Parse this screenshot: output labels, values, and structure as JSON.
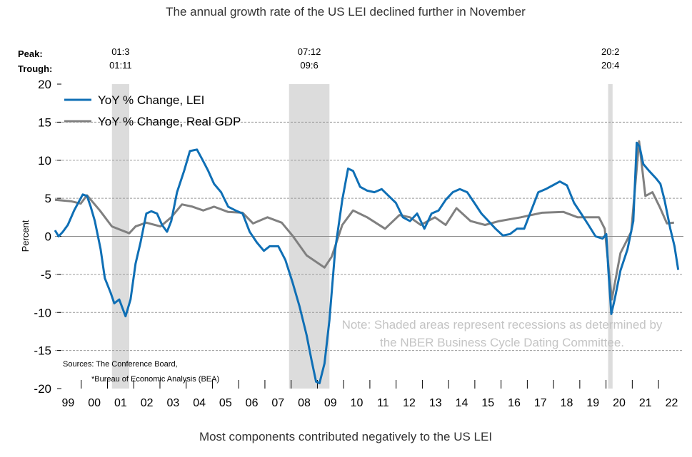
{
  "chart_data": {
    "type": "line",
    "title": "The annual growth rate of the US LEI declined further in November",
    "footer": "Most components contributed negatively to the US LEI",
    "ylabel": "Percent",
    "ylim": [
      -20,
      20
    ],
    "yticks": [
      20,
      15,
      10,
      5,
      0,
      -5,
      -10,
      -15,
      -20
    ],
    "xlim": [
      1999,
      2022.95
    ],
    "xtick_labels": [
      "99",
      "00",
      "01",
      "02",
      "03",
      "04",
      "05",
      "06",
      "07",
      "08",
      "09",
      "10",
      "11",
      "12",
      "13",
      "14",
      "15",
      "16",
      "17",
      "18",
      "19",
      "20",
      "21",
      "22"
    ],
    "grid": true,
    "legend_placement": "top-left",
    "peak_label": "Peak:",
    "trough_label": "Trough:",
    "recessions": [
      {
        "start": 2001.17,
        "end": 2001.83,
        "peak": "01:3",
        "trough": "01:11"
      },
      {
        "start": 2007.92,
        "end": 2009.46,
        "peak": "07:12",
        "trough": "09:6"
      },
      {
        "start": 2020.08,
        "end": 2020.25,
        "peak": "20:2",
        "trough": "20:4"
      }
    ],
    "note_lines": [
      "Note: Shaded areas represent recessions as determined by",
      "the NBER Business Cycle Dating Committee."
    ],
    "sources_lines": [
      "Sources: The Conference Board,",
      "*Bureau of Economic Analysis (BEA)"
    ],
    "series": [
      {
        "name": "YoY % Change, LEI",
        "color": "#0f6fb5",
        "points": [
          [
            1999.0,
            0.8
          ],
          [
            1999.14,
            0
          ],
          [
            1999.3,
            0.6
          ],
          [
            1999.49,
            1.5
          ],
          [
            1999.73,
            3.4
          ],
          [
            1999.98,
            5.0
          ],
          [
            2000.06,
            5.5
          ],
          [
            2000.22,
            5.3
          ],
          [
            2000.36,
            3.9
          ],
          [
            2000.52,
            2
          ],
          [
            2000.74,
            -1.7
          ],
          [
            2000.9,
            -5.5
          ],
          [
            2001.12,
            -7.4
          ],
          [
            2001.26,
            -8.8
          ],
          [
            2001.45,
            -8.3
          ],
          [
            2001.69,
            -10.5
          ],
          [
            2001.88,
            -8.3
          ],
          [
            2002.07,
            -3.6
          ],
          [
            2002.26,
            -0.8
          ],
          [
            2002.48,
            3
          ],
          [
            2002.67,
            3.3
          ],
          [
            2002.89,
            3
          ],
          [
            2003.08,
            1.5
          ],
          [
            2003.27,
            0.6
          ],
          [
            2003.43,
            2
          ],
          [
            2003.65,
            5.8
          ],
          [
            2003.92,
            8.6
          ],
          [
            2004.14,
            11.2
          ],
          [
            2004.41,
            11.4
          ],
          [
            2004.63,
            10
          ],
          [
            2004.84,
            8.6
          ],
          [
            2005.06,
            6.9
          ],
          [
            2005.33,
            5.8
          ],
          [
            2005.6,
            3.9
          ],
          [
            2005.88,
            3.4
          ],
          [
            2006.15,
            3
          ],
          [
            2006.42,
            0.6
          ],
          [
            2006.69,
            -0.8
          ],
          [
            2006.96,
            -1.9
          ],
          [
            2007.18,
            -1.3
          ],
          [
            2007.51,
            -1.3
          ],
          [
            2007.78,
            -3.1
          ],
          [
            2008.05,
            -6
          ],
          [
            2008.32,
            -9.2
          ],
          [
            2008.59,
            -13
          ],
          [
            2008.78,
            -16.3
          ],
          [
            2008.95,
            -19.1
          ],
          [
            2009.08,
            -19.3
          ],
          [
            2009.27,
            -16.7
          ],
          [
            2009.46,
            -11
          ],
          [
            2009.68,
            -1.7
          ],
          [
            2009.95,
            4.8
          ],
          [
            2010.17,
            8.9
          ],
          [
            2010.36,
            8.6
          ],
          [
            2010.63,
            6.5
          ],
          [
            2010.9,
            6
          ],
          [
            2011.17,
            5.8
          ],
          [
            2011.45,
            6.2
          ],
          [
            2011.72,
            5.3
          ],
          [
            2011.99,
            4.4
          ],
          [
            2012.26,
            2.5
          ],
          [
            2012.53,
            2
          ],
          [
            2012.8,
            3
          ],
          [
            2013.08,
            1
          ],
          [
            2013.35,
            3
          ],
          [
            2013.62,
            3.4
          ],
          [
            2013.89,
            4.8
          ],
          [
            2014.16,
            5.8
          ],
          [
            2014.43,
            6.2
          ],
          [
            2014.71,
            5.8
          ],
          [
            2014.98,
            4.4
          ],
          [
            2015.25,
            3
          ],
          [
            2015.52,
            2
          ],
          [
            2015.79,
            1
          ],
          [
            2016.07,
            0.1
          ],
          [
            2016.34,
            0.3
          ],
          [
            2016.61,
            1
          ],
          [
            2016.88,
            1
          ],
          [
            2017.15,
            3.4
          ],
          [
            2017.42,
            5.8
          ],
          [
            2017.7,
            6.2
          ],
          [
            2017.97,
            6.7
          ],
          [
            2018.24,
            7.2
          ],
          [
            2018.51,
            6.7
          ],
          [
            2018.78,
            4.4
          ],
          [
            2019.05,
            3
          ],
          [
            2019.33,
            1.5
          ],
          [
            2019.6,
            0
          ],
          [
            2019.87,
            -0.3
          ],
          [
            2020.01,
            0.3
          ],
          [
            2020.09,
            -4.5
          ],
          [
            2020.2,
            -10.2
          ],
          [
            2020.33,
            -8.3
          ],
          [
            2020.55,
            -4.5
          ],
          [
            2020.82,
            -1.7
          ],
          [
            2021.04,
            2
          ],
          [
            2021.17,
            12.3
          ],
          [
            2021.28,
            11.8
          ],
          [
            2021.42,
            9.5
          ],
          [
            2021.64,
            8.6
          ],
          [
            2021.91,
            7.6
          ],
          [
            2022.07,
            6.9
          ],
          [
            2022.23,
            4.8
          ],
          [
            2022.45,
            1
          ],
          [
            2022.61,
            -1.3
          ],
          [
            2022.75,
            -4.4
          ]
        ]
      },
      {
        "name": "YoY % Change, Real GDP",
        "color": "#808080",
        "points": [
          [
            1999.0,
            4.8
          ],
          [
            1999.63,
            4.6
          ],
          [
            1999.98,
            4.3
          ],
          [
            2000.22,
            5.4
          ],
          [
            2000.71,
            3.4
          ],
          [
            2001.17,
            1.3
          ],
          [
            2001.83,
            0.4
          ],
          [
            2002.07,
            1.3
          ],
          [
            2002.48,
            1.8
          ],
          [
            2003.02,
            1.3
          ],
          [
            2003.43,
            2.5
          ],
          [
            2003.84,
            4.2
          ],
          [
            2004.24,
            3.9
          ],
          [
            2004.65,
            3.4
          ],
          [
            2005.06,
            3.9
          ],
          [
            2005.6,
            3.2
          ],
          [
            2006.15,
            3.1
          ],
          [
            2006.55,
            1.7
          ],
          [
            2007.1,
            2.5
          ],
          [
            2007.64,
            1.8
          ],
          [
            2008.05,
            0.1
          ],
          [
            2008.59,
            -2.5
          ],
          [
            2009.27,
            -4.1
          ],
          [
            2009.54,
            -2.7
          ],
          [
            2009.95,
            1.5
          ],
          [
            2010.36,
            3.4
          ],
          [
            2010.9,
            2.5
          ],
          [
            2011.58,
            1
          ],
          [
            2012.13,
            2.8
          ],
          [
            2012.53,
            2.5
          ],
          [
            2012.94,
            1.5
          ],
          [
            2013.48,
            2.5
          ],
          [
            2013.89,
            1.5
          ],
          [
            2014.3,
            3.7
          ],
          [
            2014.84,
            2
          ],
          [
            2015.39,
            1.5
          ],
          [
            2015.93,
            2
          ],
          [
            2016.75,
            2.5
          ],
          [
            2017.56,
            3.1
          ],
          [
            2018.38,
            3.2
          ],
          [
            2018.92,
            2.5
          ],
          [
            2019.73,
            2.5
          ],
          [
            2019.95,
            1
          ],
          [
            2020.22,
            -8.3
          ],
          [
            2020.55,
            -2.2
          ],
          [
            2020.96,
            0.6
          ],
          [
            2021.26,
            12.5
          ],
          [
            2021.5,
            5.3
          ],
          [
            2021.77,
            5.8
          ],
          [
            2022.04,
            3.9
          ],
          [
            2022.32,
            1.7
          ],
          [
            2022.59,
            1.8
          ]
        ]
      }
    ]
  }
}
